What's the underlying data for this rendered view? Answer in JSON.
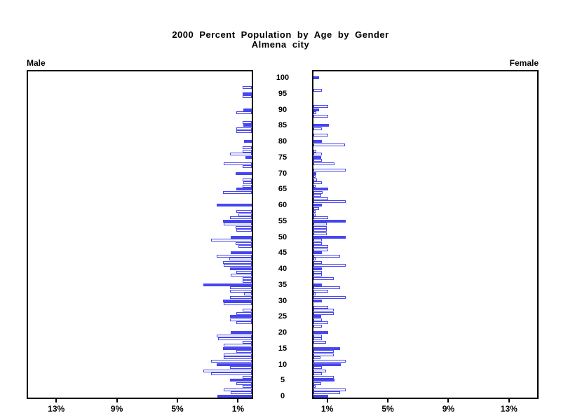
{
  "title": {
    "line1": "2000 Percent Population by Age by Gender",
    "line2": "Almena city"
  },
  "panels": {
    "male_label": "Male",
    "female_label": "Female"
  },
  "axes": {
    "age_tick_labels": [
      "0",
      "5",
      "10",
      "15",
      "20",
      "25",
      "30",
      "35",
      "40",
      "45",
      "50",
      "55",
      "60",
      "65",
      "70",
      "75",
      "80",
      "85",
      "90",
      "95",
      "100"
    ],
    "age_tick_values": [
      0,
      5,
      10,
      15,
      20,
      25,
      30,
      35,
      40,
      45,
      50,
      55,
      60,
      65,
      70,
      75,
      80,
      85,
      90,
      95,
      100
    ],
    "male_pct_tick_labels": [
      "13%",
      "9%",
      "5%",
      "1%"
    ],
    "male_pct_tick_values": [
      13,
      9,
      5,
      1
    ],
    "female_pct_tick_labels": [
      "1%",
      "5%",
      "9%",
      "13%"
    ],
    "female_pct_tick_values": [
      1,
      5,
      9,
      13
    ]
  },
  "colors": {
    "bar_blue": "#4646ee",
    "frame": "#000000",
    "background": "#ffffff"
  },
  "chart_data": {
    "type": "bar",
    "subtype": "population-pyramid",
    "title": "2000 Percent Population by Age by Gender",
    "subtitle": "Almena city",
    "x_unit": "percent of population",
    "xlim_each_side": [
      0,
      15
    ],
    "age_min": 0,
    "age_max": 100,
    "bar_style_rule": "ages divisible by 5 are solid blue bars; all other single-year ages are white bars with blue outline",
    "grid": false,
    "legend": "none",
    "series": [
      {
        "name": "Male",
        "side": "left",
        "values_by_age": [
          2.25,
          1.4,
          1.85,
          0.6,
          1.0,
          1.45,
          0.6,
          2.7,
          3.2,
          1.45,
          2.3,
          2.7,
          1.85,
          1.85,
          1.0,
          1.9,
          1.85,
          0.6,
          2.2,
          2.3,
          1.4,
          0,
          0,
          1.0,
          1.45,
          1.45,
          1.0,
          0.6,
          0,
          1.85,
          1.9,
          1.45,
          0.5,
          1.45,
          1.45,
          3.2,
          0.6,
          0.6,
          1.4,
          1.0,
          1.45,
          1.85,
          1.9,
          1.5,
          2.3,
          1.4,
          0,
          0.9,
          1.05,
          2.7,
          1.4,
          0,
          1.0,
          1.05,
          1.85,
          1.9,
          1.45,
          0.9,
          1.0,
          0,
          2.3,
          0,
          0,
          0,
          1.9,
          1.0,
          0.6,
          0.55,
          0.6,
          0,
          1.05,
          0,
          0.6,
          1.85,
          0,
          0.4,
          1.45,
          0.6,
          0.6,
          0,
          0.5,
          0,
          0,
          1.0,
          1.0,
          0.55,
          0.6,
          0,
          0,
          1.0,
          0.55,
          0,
          0,
          0,
          0.6,
          0.6,
          0,
          0.6,
          0,
          0,
          0
        ]
      },
      {
        "name": "Female",
        "side": "right",
        "values_by_age": [
          0.95,
          1.75,
          2.15,
          0.15,
          0.5,
          1.4,
          1.35,
          0.55,
          0.85,
          0.55,
          1.8,
          2.15,
          0.45,
          1.35,
          1.35,
          1.75,
          0,
          0.85,
          0.55,
          0.55,
          0.95,
          0,
          0.55,
          0.95,
          0.55,
          0.5,
          1.35,
          1.35,
          0.95,
          0,
          0.55,
          2.15,
          0.15,
          0.95,
          1.75,
          0.55,
          0,
          1.35,
          0.55,
          0.55,
          0.55,
          2.15,
          0.55,
          0.15,
          1.75,
          0.55,
          0.95,
          0.95,
          0.55,
          0.55,
          2.15,
          0.9,
          0.9,
          0.9,
          0.9,
          2.15,
          0.95,
          0.15,
          0.15,
          0.35,
          0.55,
          2.15,
          0.95,
          0.5,
          0.6,
          0.95,
          0.15,
          0.55,
          0.25,
          0.15,
          0.2,
          2.15,
          0,
          1.4,
          0.55,
          0.5,
          0.55,
          0.2,
          0,
          2.1,
          0.55,
          0,
          0.95,
          0,
          0.55,
          1.0,
          0,
          0,
          0.95,
          0.2,
          0.35,
          0.95,
          0,
          0,
          0,
          0,
          0.55,
          0,
          0,
          0,
          0.35
        ]
      }
    ]
  }
}
